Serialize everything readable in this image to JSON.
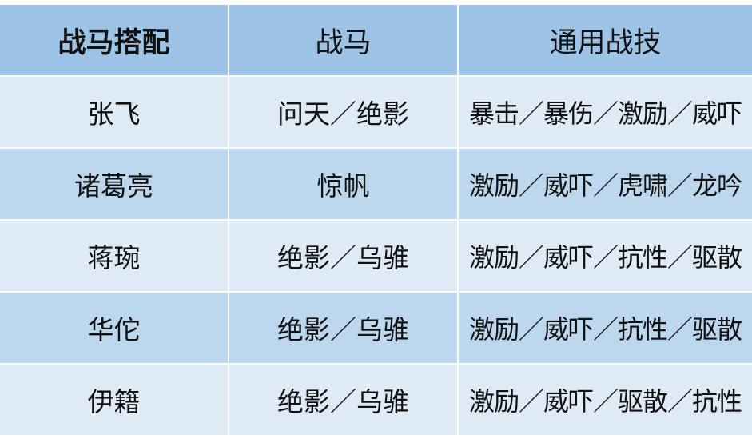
{
  "table": {
    "headers": [
      "战马搭配",
      "战马",
      "通用战技"
    ],
    "rows": [
      {
        "general": "张飞",
        "horse": "问天／绝影",
        "skills": "暴击／暴伤／激励／威吓"
      },
      {
        "general": "诸葛亮",
        "horse": "惊帆",
        "skills": "激励／威吓／虎啸／龙吟"
      },
      {
        "general": "蒋琬",
        "horse": "绝影／乌骓",
        "skills": "激励／威吓／抗性／驱散"
      },
      {
        "general": "华佗",
        "horse": "绝影／乌骓",
        "skills": "激励／威吓／抗性／驱散"
      },
      {
        "general": "伊籍",
        "horse": "绝影／乌骓",
        "skills": "激励／威吓／驱散／抗性"
      }
    ],
    "colors": {
      "header": "#9dc3e6",
      "row_light": "#deebf7",
      "row_dark": "#bdd7ee",
      "grid": "#ffffff"
    }
  }
}
